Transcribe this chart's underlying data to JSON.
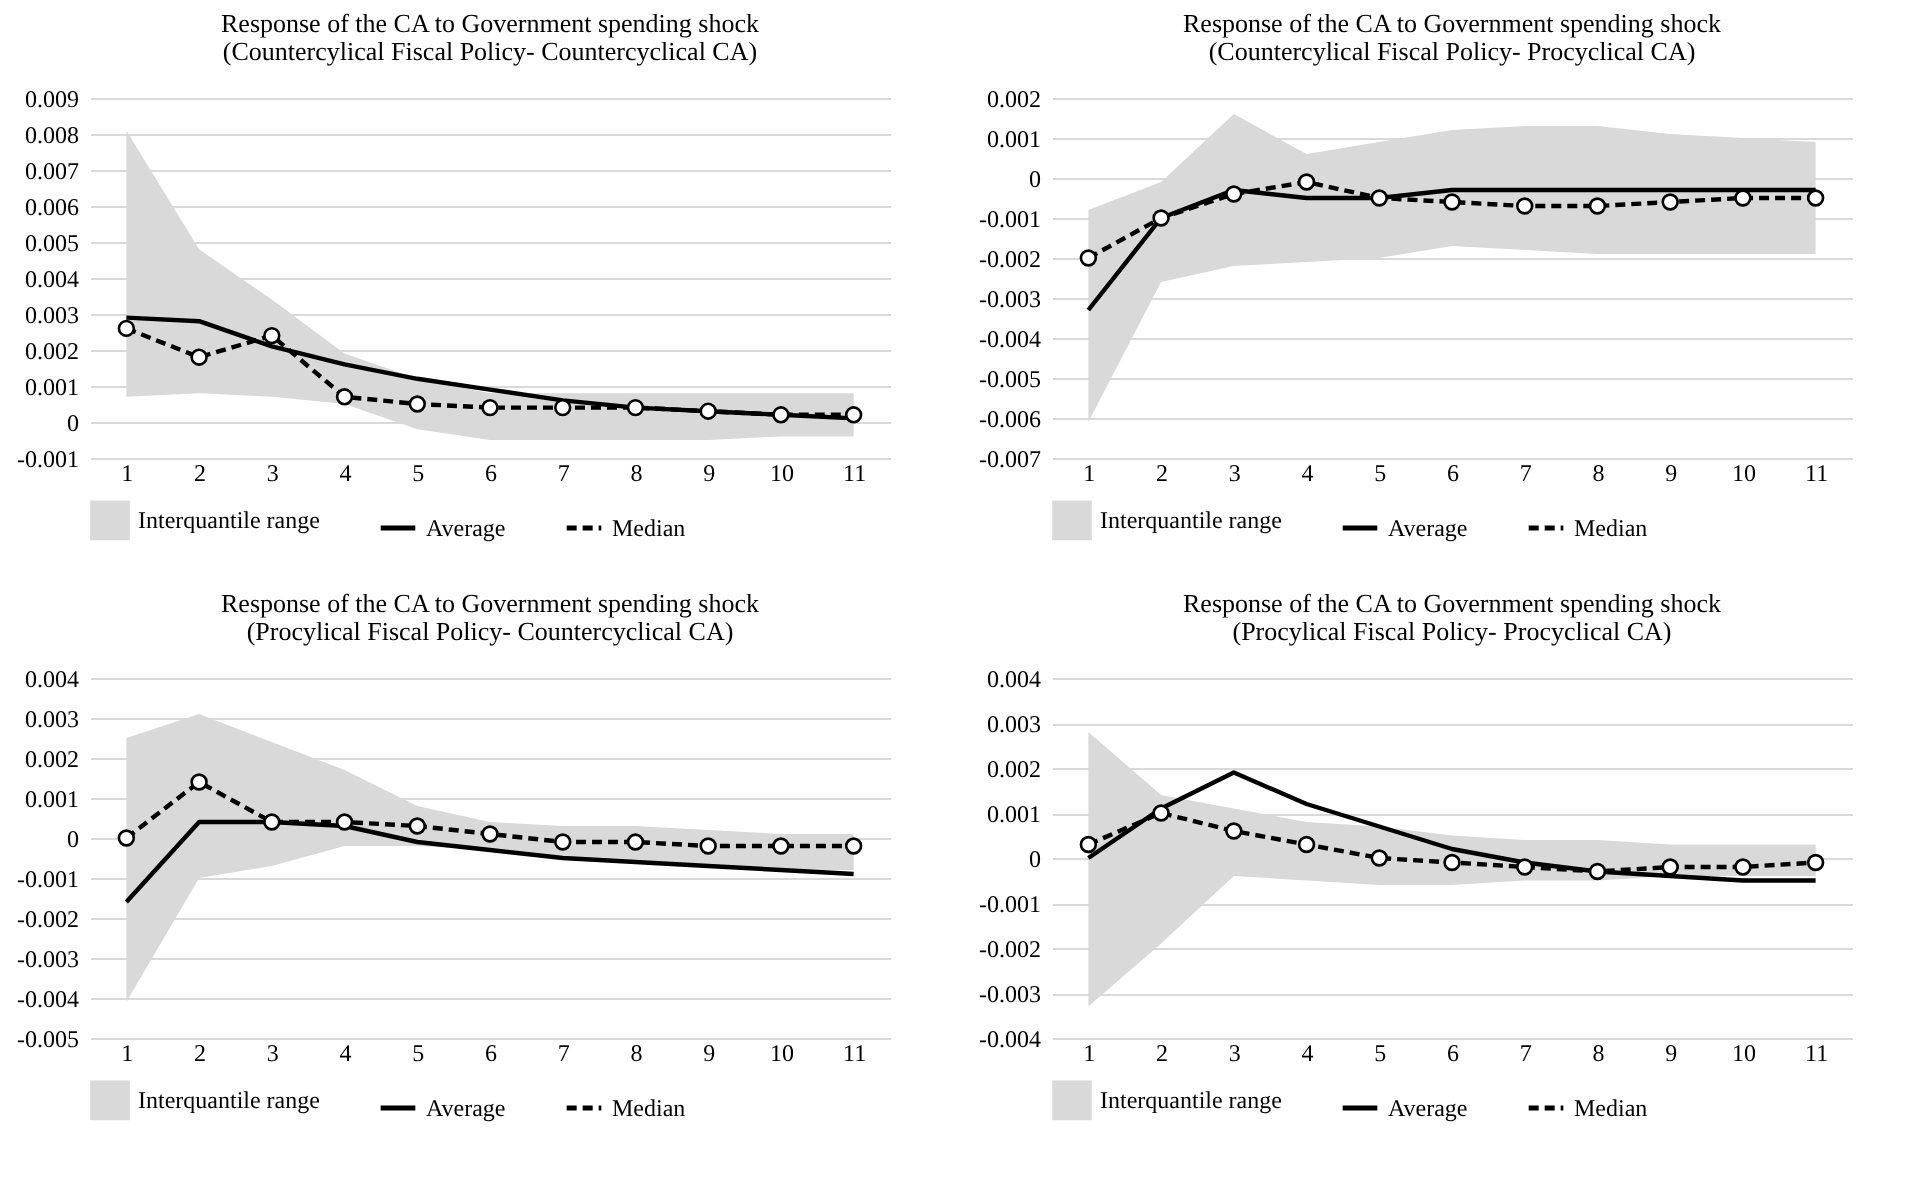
{
  "chart_data": [
    {
      "type": "line",
      "title": "Response of the CA to Government spending shock",
      "subtitle": "(Countercylical Fiscal Policy- Countercyclical CA)",
      "categories": [
        "1",
        "2",
        "3",
        "4",
        "5",
        "6",
        "7",
        "8",
        "9",
        "10",
        "11"
      ],
      "ylim": [
        -0.001,
        0.009
      ],
      "yticks": [
        -0.001,
        0,
        0.001,
        0.002,
        0.003,
        0.004,
        0.005,
        0.006,
        0.007,
        0.008,
        0.009
      ],
      "grid": "y",
      "legend": "bottom",
      "series": [
        {
          "name": "Interquantile range",
          "type": "area",
          "color": "#d9d9d9",
          "values": [
            null,
            null,
            null,
            null,
            null,
            null,
            null,
            null,
            null,
            null,
            null
          ],
          "lower": [
            0.0007,
            0.0008,
            0.0007,
            0.0005,
            -0.0002,
            -0.0005,
            -0.0005,
            -0.0005,
            -0.0005,
            -0.0004,
            -0.0004
          ],
          "upper": [
            0.0081,
            0.0048,
            0.0034,
            0.0019,
            0.0012,
            0.0008,
            0.0008,
            0.0008,
            0.0008,
            0.0008,
            0.0008
          ]
        },
        {
          "name": "Average",
          "type": "line",
          "color": "#000000",
          "line_style": "solid",
          "values": [
            0.0029,
            0.0028,
            0.0021,
            0.0016,
            0.0012,
            0.0009,
            0.0006,
            0.0004,
            0.0003,
            0.0002,
            0.0001
          ]
        },
        {
          "name": "Median",
          "type": "line",
          "color": "#000000",
          "line_style": "dashed",
          "marker": "circle",
          "values": [
            0.0026,
            0.0018,
            0.0024,
            0.0007,
            0.0005,
            0.0004,
            0.0004,
            0.0004,
            0.0003,
            0.0002,
            0.0002
          ]
        }
      ]
    },
    {
      "type": "line",
      "title": "Response of the CA to Government spending shock",
      "subtitle": "(Countercylical Fiscal Policy- Procyclical CA)",
      "categories": [
        "1",
        "2",
        "3",
        "4",
        "5",
        "6",
        "7",
        "8",
        "9",
        "10",
        "11"
      ],
      "ylim": [
        -0.007,
        0.002
      ],
      "yticks": [
        -0.007,
        -0.006,
        -0.005,
        -0.004,
        -0.003,
        -0.002,
        -0.001,
        0,
        0.001,
        0.002
      ],
      "grid": "y",
      "legend": "bottom",
      "series": [
        {
          "name": "Interquantile range",
          "type": "area",
          "color": "#d9d9d9",
          "values": [
            null,
            null,
            null,
            null,
            null,
            null,
            null,
            null,
            null,
            null,
            null
          ],
          "lower": [
            -0.0061,
            -0.0026,
            -0.0022,
            -0.0021,
            -0.002,
            -0.0017,
            -0.0018,
            -0.0019,
            -0.0019,
            -0.0019,
            -0.0019
          ],
          "upper": [
            -0.0008,
            -0.0001,
            0.0016,
            0.0006,
            0.0009,
            0.0012,
            0.0013,
            0.0013,
            0.0011,
            0.001,
            0.0009
          ]
        },
        {
          "name": "Average",
          "type": "line",
          "color": "#000000",
          "line_style": "solid",
          "values": [
            -0.0033,
            -0.001,
            -0.0003,
            -0.0005,
            -0.0005,
            -0.0003,
            -0.0003,
            -0.0003,
            -0.0003,
            -0.0003,
            -0.0003
          ]
        },
        {
          "name": "Median",
          "type": "line",
          "color": "#000000",
          "line_style": "dashed",
          "marker": "circle",
          "values": [
            -0.002,
            -0.001,
            -0.0004,
            -0.0001,
            -0.0005,
            -0.0006,
            -0.0007,
            -0.0007,
            -0.0006,
            -0.0005,
            -0.0005
          ]
        }
      ]
    },
    {
      "type": "line",
      "title": "Response of the CA to Government spending shock",
      "subtitle": "(Procylical Fiscal Policy- Countercyclical CA)",
      "categories": [
        "1",
        "2",
        "3",
        "4",
        "5",
        "6",
        "7",
        "8",
        "9",
        "10",
        "11"
      ],
      "ylim": [
        -0.005,
        0.004
      ],
      "yticks": [
        -0.005,
        -0.004,
        -0.003,
        -0.002,
        -0.001,
        0,
        0.001,
        0.002,
        0.003,
        0.004
      ],
      "grid": "y",
      "legend": "bottom",
      "series": [
        {
          "name": "Interquantile range",
          "type": "area",
          "color": "#d9d9d9",
          "values": [
            null,
            null,
            null,
            null,
            null,
            null,
            null,
            null,
            null,
            null,
            null
          ],
          "lower": [
            -0.0041,
            -0.001,
            -0.0007,
            -0.0002,
            -0.0002,
            -0.0003,
            -0.0005,
            -0.0006,
            -0.0007,
            -0.0008,
            -0.0008
          ],
          "upper": [
            0.0025,
            0.0031,
            0.0024,
            0.0017,
            0.0008,
            0.0004,
            0.0003,
            0.0003,
            0.0002,
            0.0001,
            0.0001
          ]
        },
        {
          "name": "Average",
          "type": "line",
          "color": "#000000",
          "line_style": "solid",
          "values": [
            -0.0016,
            0.0004,
            0.0004,
            0.0003,
            -0.0001,
            -0.0003,
            -0.0005,
            -0.0006,
            -0.0007,
            -0.0008,
            -0.0009
          ]
        },
        {
          "name": "Median",
          "type": "line",
          "color": "#000000",
          "line_style": "dashed",
          "marker": "circle",
          "values": [
            0,
            0.0014,
            0.0004,
            0.0004,
            0.0003,
            0.0001,
            -0.0001,
            -0.0001,
            -0.0002,
            -0.0002,
            -0.0002
          ]
        }
      ]
    },
    {
      "type": "line",
      "title": "Response of the CA to Government spending shock",
      "subtitle": "(Procylical Fiscal Policy- Procyclical CA)",
      "categories": [
        "1",
        "2",
        "3",
        "4",
        "5",
        "6",
        "7",
        "8",
        "9",
        "10",
        "11"
      ],
      "ylim": [
        -0.004,
        0.004
      ],
      "yticks": [
        -0.004,
        -0.003,
        -0.002,
        -0.001,
        0,
        0.001,
        0.002,
        0.003,
        0.004
      ],
      "grid": "y",
      "legend": "bottom",
      "series": [
        {
          "name": "Interquantile range",
          "type": "area",
          "color": "#d9d9d9",
          "values": [
            null,
            null,
            null,
            null,
            null,
            null,
            null,
            null,
            null,
            null,
            null
          ],
          "lower": [
            -0.0033,
            -0.0019,
            -0.0004,
            -0.0005,
            -0.0006,
            -0.0006,
            -0.0005,
            -0.0005,
            -0.0004,
            -0.0004,
            -0.0004
          ],
          "upper": [
            0.0028,
            0.0014,
            0.0011,
            0.0008,
            0.0007,
            0.0005,
            0.0004,
            0.0004,
            0.0003,
            0.0003,
            0.0003
          ]
        },
        {
          "name": "Average",
          "type": "line",
          "color": "#000000",
          "line_style": "solid",
          "values": [
            0,
            0.0011,
            0.0019,
            0.0012,
            0.0007,
            0.0002,
            -0.0001,
            -0.0003,
            -0.0004,
            -0.0005,
            -0.0005
          ]
        },
        {
          "name": "Median",
          "type": "line",
          "color": "#000000",
          "line_style": "dashed",
          "marker": "circle",
          "values": [
            0.0003,
            0.001,
            0.0006,
            0.0003,
            0,
            -0.0001,
            -0.0002,
            -0.0003,
            -0.0002,
            -0.0002,
            -0.0001
          ]
        }
      ]
    }
  ]
}
